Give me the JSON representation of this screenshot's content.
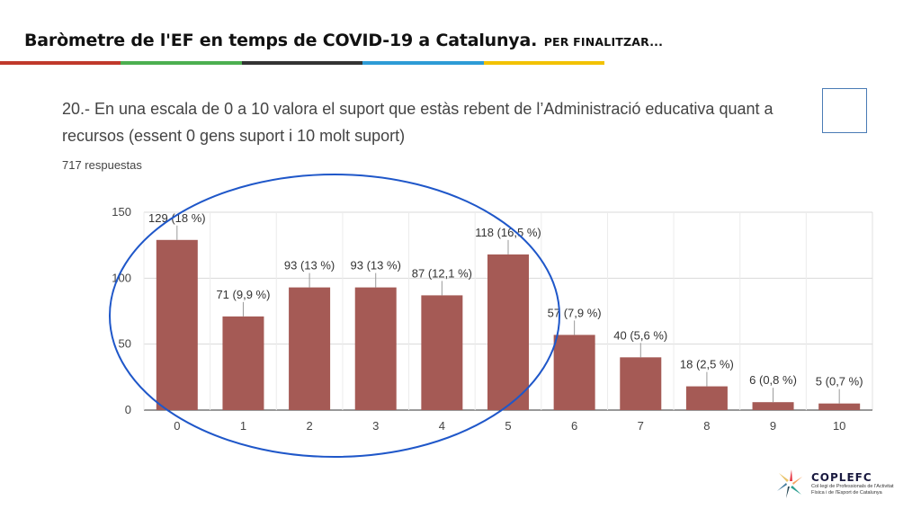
{
  "slide": {
    "title": "Baròmetre de l'EF en temps de COVID-19 a Catalunya.",
    "subtitle": "PER FINALITZAR...",
    "rule_colors": [
      "#c0392b",
      "#4caf50",
      "#333333",
      "#2e9bd6",
      "#f2c200"
    ]
  },
  "question": {
    "text": "20.- En una escala de 0 a 10 valora el suport que estàs rebent de l’Administració educativa quant a recursos (essent 0 gens suport i 10 molt suport)",
    "responses": "717 respuestas"
  },
  "chart_data": {
    "type": "bar",
    "categories": [
      "0",
      "1",
      "2",
      "3",
      "4",
      "5",
      "6",
      "7",
      "8",
      "9",
      "10"
    ],
    "values": [
      129,
      71,
      93,
      93,
      87,
      118,
      57,
      40,
      18,
      6,
      5
    ],
    "data_labels": [
      "129 (18 %)",
      "71 (9,9 %)",
      "93 (13 %)",
      "93 (13 %)",
      "87 (12,1 %)",
      "118 (16,5 %)",
      "57 (7,9 %)",
      "40 (5,6 %)",
      "18 (2,5 %)",
      "6 (0,8 %)",
      "5 (0,7 %)"
    ],
    "yticks": [
      0,
      50,
      100,
      150
    ],
    "ylim": [
      0,
      150
    ],
    "bar_color": "#a55a55",
    "grid": true,
    "annotation_color": "#1f57c9"
  },
  "logo": {
    "name": "COPLEFC",
    "line1": "Col·legi de Professionals de l'Activitat",
    "line2": "Física i de l'Esport de Catalunya"
  }
}
